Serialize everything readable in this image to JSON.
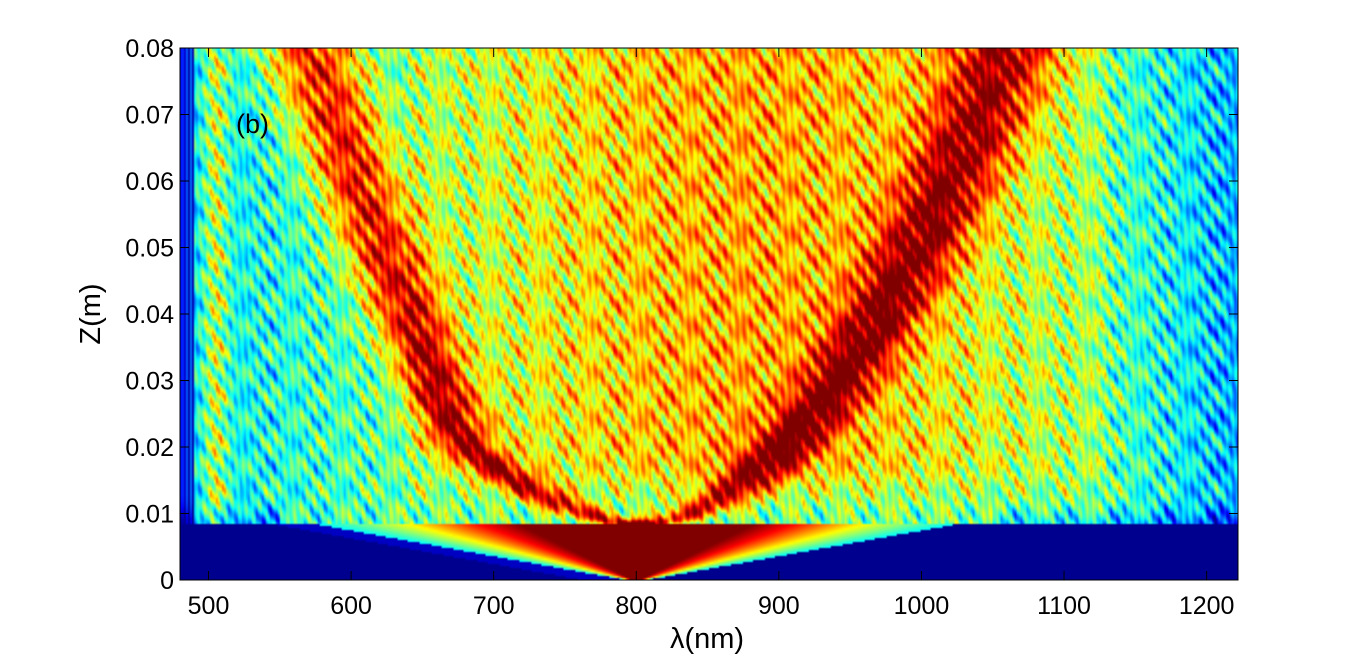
{
  "chart_data": {
    "type": "heatmap",
    "panel_label": "(b)",
    "xlabel": "λ(nm)",
    "ylabel": "Z(m)",
    "xlim": [
      480,
      1222
    ],
    "ylim": [
      0,
      0.08
    ],
    "x_ticks": [
      500,
      600,
      700,
      800,
      900,
      1000,
      1100,
      1200
    ],
    "x_tick_labels": [
      "500",
      "600",
      "700",
      "800",
      "900",
      "1000",
      "1100",
      "1200"
    ],
    "y_ticks": [
      0,
      0.01,
      0.02,
      0.03,
      0.04,
      0.05,
      0.06,
      0.07,
      0.08
    ],
    "y_tick_labels": [
      "0",
      "0.01",
      "0.02",
      "0.03",
      "0.04",
      "0.05",
      "0.06",
      "0.07",
      "0.08"
    ],
    "colormap": "jet",
    "colormap_stops": [
      "#00008f",
      "#0000ff",
      "#00ffff",
      "#ffff00",
      "#ff0000",
      "#800000"
    ],
    "grid": false,
    "legend": false,
    "features": {
      "pump_center_nm": 800,
      "onset_z_m": 0.0085,
      "branches": [
        {
          "start_nm": 800,
          "end_nm": 680,
          "z_end_m": 0.02
        },
        {
          "start_nm": 680,
          "end_nm": 570,
          "z_end_m": 0.08
        },
        {
          "start_nm": 800,
          "end_nm": 1060,
          "z_end_m": 0.08
        }
      ],
      "residual_band_nm": 505
    }
  }
}
